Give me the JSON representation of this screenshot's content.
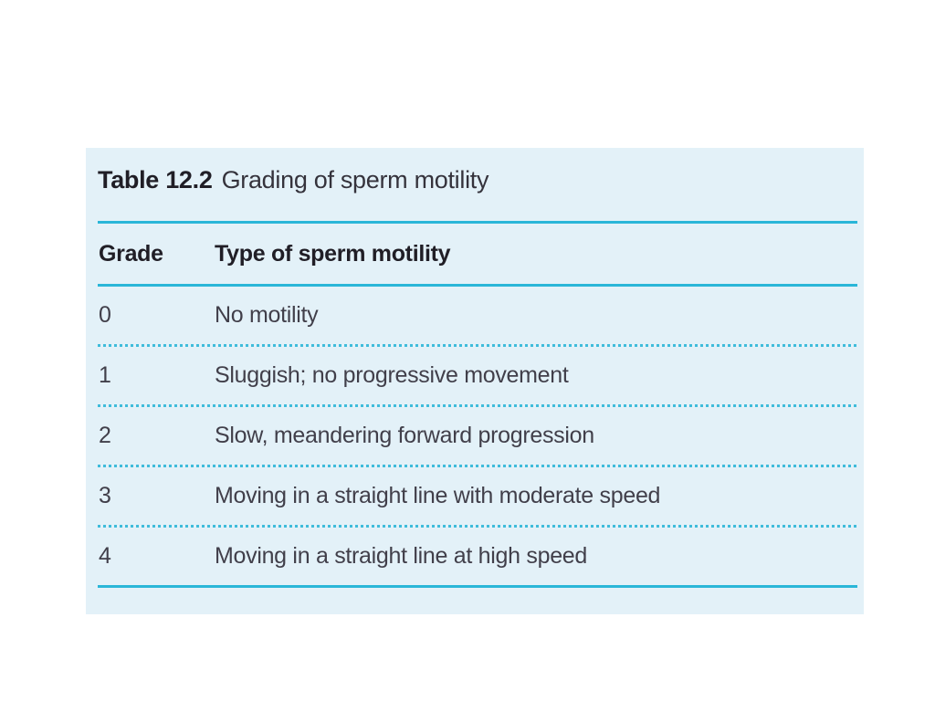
{
  "table": {
    "title_label": "Table 12.2",
    "title_text": "Grading of sperm motility",
    "header": {
      "grade": "Grade",
      "type": "Type of sperm motility"
    },
    "rows": [
      {
        "grade": "0",
        "type": "No motility"
      },
      {
        "grade": "1",
        "type": "Sluggish; no progressive movement"
      },
      {
        "grade": "2",
        "type": "Slow, meandering forward progression"
      },
      {
        "grade": "3",
        "type": "Moving in a straight line with moderate speed"
      },
      {
        "grade": "4",
        "type": "Moving in a straight line at high speed"
      }
    ],
    "colors": {
      "panel_bg": "#e3f1f8",
      "rule": "#2ab6d8",
      "rule_dotted": "#3fbcdb",
      "text_dark": "#201e26",
      "text_body": "#413f4a"
    }
  }
}
